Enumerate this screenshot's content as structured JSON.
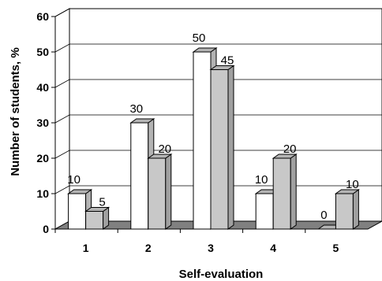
{
  "chart_data": {
    "type": "bar",
    "categories": [
      "1",
      "2",
      "3",
      "4",
      "5"
    ],
    "series": [
      {
        "values": [
          10,
          30,
          50,
          10,
          0
        ],
        "color": "#ffffff"
      },
      {
        "values": [
          5,
          20,
          45,
          20,
          10
        ],
        "color": "#c8c8c8"
      }
    ],
    "xlabel": "Self-evaluation",
    "ylabel": "Number of students, %",
    "ylim": [
      0,
      60
    ],
    "yticks": [
      "0",
      "10",
      "20",
      "30",
      "40",
      "50",
      "60"
    ],
    "grid": true,
    "legend": "none",
    "style": "3d-bar"
  }
}
